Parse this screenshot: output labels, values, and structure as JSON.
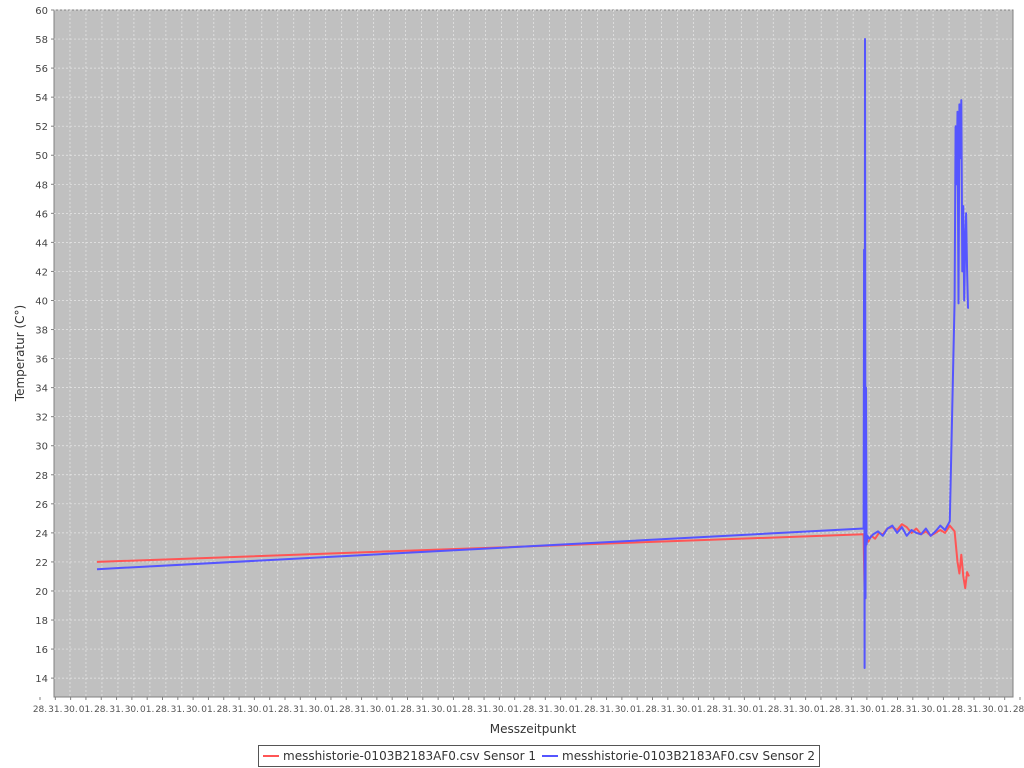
{
  "chart_data": {
    "type": "line",
    "title": "",
    "xlabel": "Messzeitpunkt",
    "ylabel": "Temperatur (C°)",
    "ylim": [
      12.7,
      60
    ],
    "yticks": [
      14,
      16,
      18,
      20,
      22,
      24,
      26,
      28,
      30,
      32,
      34,
      36,
      38,
      40,
      42,
      44,
      46,
      48,
      50,
      52,
      54,
      56,
      58,
      60
    ],
    "xticks_note": "Dense overlapping date/time tick labels along the x axis (unreadable).",
    "xtick_labels_visible": [
      "28.",
      "31.",
      "30.",
      "01."
    ],
    "grid": true,
    "legend_position": "bottom",
    "series": [
      {
        "name": "messhistorie-0103B2183AF0.csv Sensor 1",
        "color": "#ff5555",
        "x": [
          0,
          8.0,
          8.01,
          8.02,
          8.03,
          8.05,
          8.08,
          8.12,
          8.16,
          8.2,
          8.25,
          8.3,
          8.35,
          8.4,
          8.45,
          8.5,
          8.55,
          8.6,
          8.65,
          8.7,
          8.75,
          8.8,
          8.85,
          8.9,
          8.95,
          8.98,
          9.0,
          9.02,
          9.04,
          9.06,
          9.08,
          9.1
        ],
        "values": [
          22.0,
          23.9,
          19.8,
          23.0,
          23.5,
          23.4,
          23.8,
          23.6,
          24.0,
          23.9,
          24.3,
          24.4,
          24.2,
          24.6,
          24.4,
          24.0,
          24.3,
          23.9,
          24.1,
          23.8,
          24.0,
          24.2,
          24.0,
          24.5,
          24.1,
          22.0,
          21.2,
          22.5,
          21.0,
          20.2,
          21.3,
          21.0
        ]
      },
      {
        "name": "messhistorie-0103B2183AF0.csv Sensor 2",
        "color": "#5555ff",
        "x": [
          0,
          8.0,
          8.005,
          8.01,
          8.015,
          8.02,
          8.025,
          8.03,
          8.04,
          8.06,
          8.1,
          8.15,
          8.2,
          8.25,
          8.3,
          8.35,
          8.4,
          8.45,
          8.5,
          8.55,
          8.6,
          8.65,
          8.7,
          8.75,
          8.8,
          8.85,
          8.9,
          8.95,
          8.96,
          8.97,
          8.98,
          8.99,
          9.0,
          9.01,
          9.02,
          9.03,
          9.04,
          9.05,
          9.06,
          9.07,
          9.08,
          9.09,
          9.1
        ],
        "values": [
          21.5,
          24.3,
          43.5,
          14.7,
          58.0,
          19.5,
          34.0,
          23.2,
          23.8,
          23.6,
          23.9,
          24.1,
          23.8,
          24.3,
          24.5,
          24.0,
          24.4,
          23.8,
          24.2,
          24.0,
          23.9,
          24.3,
          23.8,
          24.1,
          24.5,
          24.2,
          24.8,
          40.0,
          52.0,
          48.0,
          53.0,
          39.8,
          53.5,
          49.8,
          53.8,
          42.0,
          46.5,
          40.0,
          44.0,
          46.0,
          42.0,
          39.5,
          39.5
        ]
      }
    ]
  }
}
